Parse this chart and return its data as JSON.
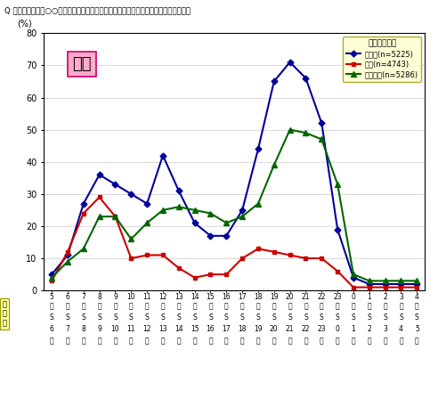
{
  "title": "Q あなたが自宅で○○をご覧になった時間帯を全てお答えください。　（いくつでも）",
  "ylabel": "(%)",
  "xlabel_top": [
    "5",
    "6",
    "7",
    "8",
    "9",
    "10",
    "11",
    "12",
    "13",
    "14",
    "15",
    "16",
    "17",
    "18",
    "19",
    "20",
    "21",
    "22",
    "23",
    "0",
    "1",
    "2",
    "3",
    "4"
  ],
  "xlabel_bottom": [
    "6",
    "7",
    "8",
    "9",
    "10",
    "11",
    "12",
    "13",
    "14",
    "15",
    "16",
    "17",
    "18",
    "19",
    "20",
    "21",
    "22",
    "23",
    "0",
    "1",
    "2",
    "3",
    "4",
    "5"
  ],
  "ylim": [
    0,
    80
  ],
  "yticks": [
    0,
    10,
    20,
    30,
    40,
    50,
    60,
    70,
    80
  ],
  "tv_data": [
    5,
    11,
    27,
    36,
    33,
    30,
    27,
    42,
    31,
    21,
    17,
    17,
    25,
    44,
    65,
    71,
    66,
    52,
    19,
    4,
    2,
    2,
    2,
    2
  ],
  "newspaper_data": [
    3,
    12,
    24,
    29,
    23,
    10,
    11,
    11,
    7,
    4,
    5,
    5,
    10,
    13,
    12,
    11,
    10,
    10,
    6,
    1,
    1,
    1,
    1,
    1
  ],
  "pc_data": [
    4,
    9,
    13,
    23,
    23,
    16,
    21,
    25,
    26,
    25,
    24,
    21,
    23,
    27,
    39,
    50,
    49,
    47,
    33,
    5,
    3,
    3,
    3,
    3
  ],
  "tv_color": "#000099",
  "newspaper_color": "#cc0000",
  "pc_color": "#006600",
  "tv_label": "テレビ(n=5225)",
  "newspaper_label": "新聞(n=4743)",
  "pc_label": "パソコン(n=5286)",
  "legend_title": "利用メディア",
  "annotation_text": "休日",
  "annotation_bg": "#ffaacc",
  "legend_bg": "#ffffcc",
  "timezones_label": "時間帯",
  "timezones_bg": "#ffff99",
  "bg_color": "#ffffff"
}
